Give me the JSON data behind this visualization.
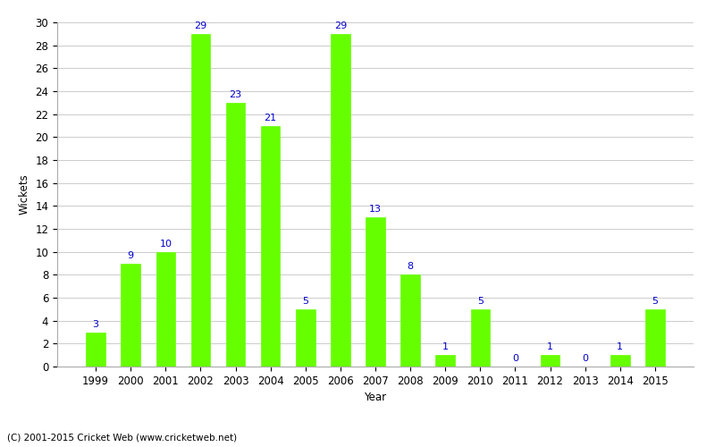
{
  "years": [
    1999,
    2000,
    2001,
    2002,
    2003,
    2004,
    2005,
    2006,
    2007,
    2008,
    2009,
    2010,
    2011,
    2012,
    2013,
    2014,
    2015
  ],
  "wickets": [
    3,
    9,
    10,
    29,
    23,
    21,
    5,
    29,
    13,
    8,
    1,
    5,
    0,
    1,
    0,
    1,
    5
  ],
  "bar_color": "#66ff00",
  "bar_edge_color": "#66ff00",
  "label_color": "#0000cc",
  "ylabel": "Wickets",
  "xlabel": "Year",
  "ylim": [
    0,
    30
  ],
  "yticks": [
    0,
    2,
    4,
    6,
    8,
    10,
    12,
    14,
    16,
    18,
    20,
    22,
    24,
    26,
    28,
    30
  ],
  "footer": "(C) 2001-2015 Cricket Web (www.cricketweb.net)",
  "label_fontsize": 8,
  "axis_fontsize": 8.5,
  "background_color": "#ffffff",
  "grid_color": "#cccccc",
  "bar_width": 0.55
}
